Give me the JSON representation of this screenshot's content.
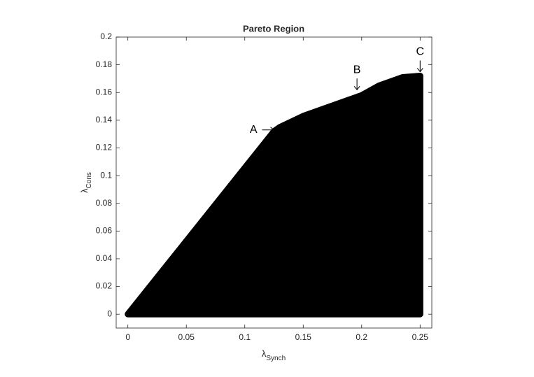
{
  "chart_data": {
    "type": "area",
    "title": "Pareto Region",
    "xlabel": "λ",
    "xlabel_sub": "Synch",
    "ylabel": "λ",
    "ylabel_sub": "Cons",
    "x": [
      0,
      0.125,
      0.13,
      0.15,
      0.17,
      0.19,
      0.2,
      0.215,
      0.235,
      0.25,
      0.25
    ],
    "values": [
      0,
      0.132,
      0.135,
      0.143,
      0.149,
      0.155,
      0.158,
      0.165,
      0.171,
      0.172,
      0
    ],
    "color": "#000000",
    "xlim": [
      -0.01,
      0.26
    ],
    "xticks": [
      0,
      0.05,
      0.1,
      0.15,
      0.2,
      0.25
    ],
    "ylim": [
      -0.01,
      0.2
    ],
    "yticks": [
      0,
      0.02,
      0.04,
      0.06,
      0.08,
      0.1,
      0.12,
      0.14,
      0.16,
      0.18,
      0.2
    ],
    "grid": false,
    "annotations": [
      {
        "text": "A",
        "x": 0.125,
        "y": 0.133,
        "arrow": "right"
      },
      {
        "text": "B",
        "x": 0.196,
        "y": 0.162,
        "arrow": "down"
      },
      {
        "text": "C",
        "x": 0.25,
        "y": 0.175,
        "arrow": "down"
      }
    ]
  }
}
